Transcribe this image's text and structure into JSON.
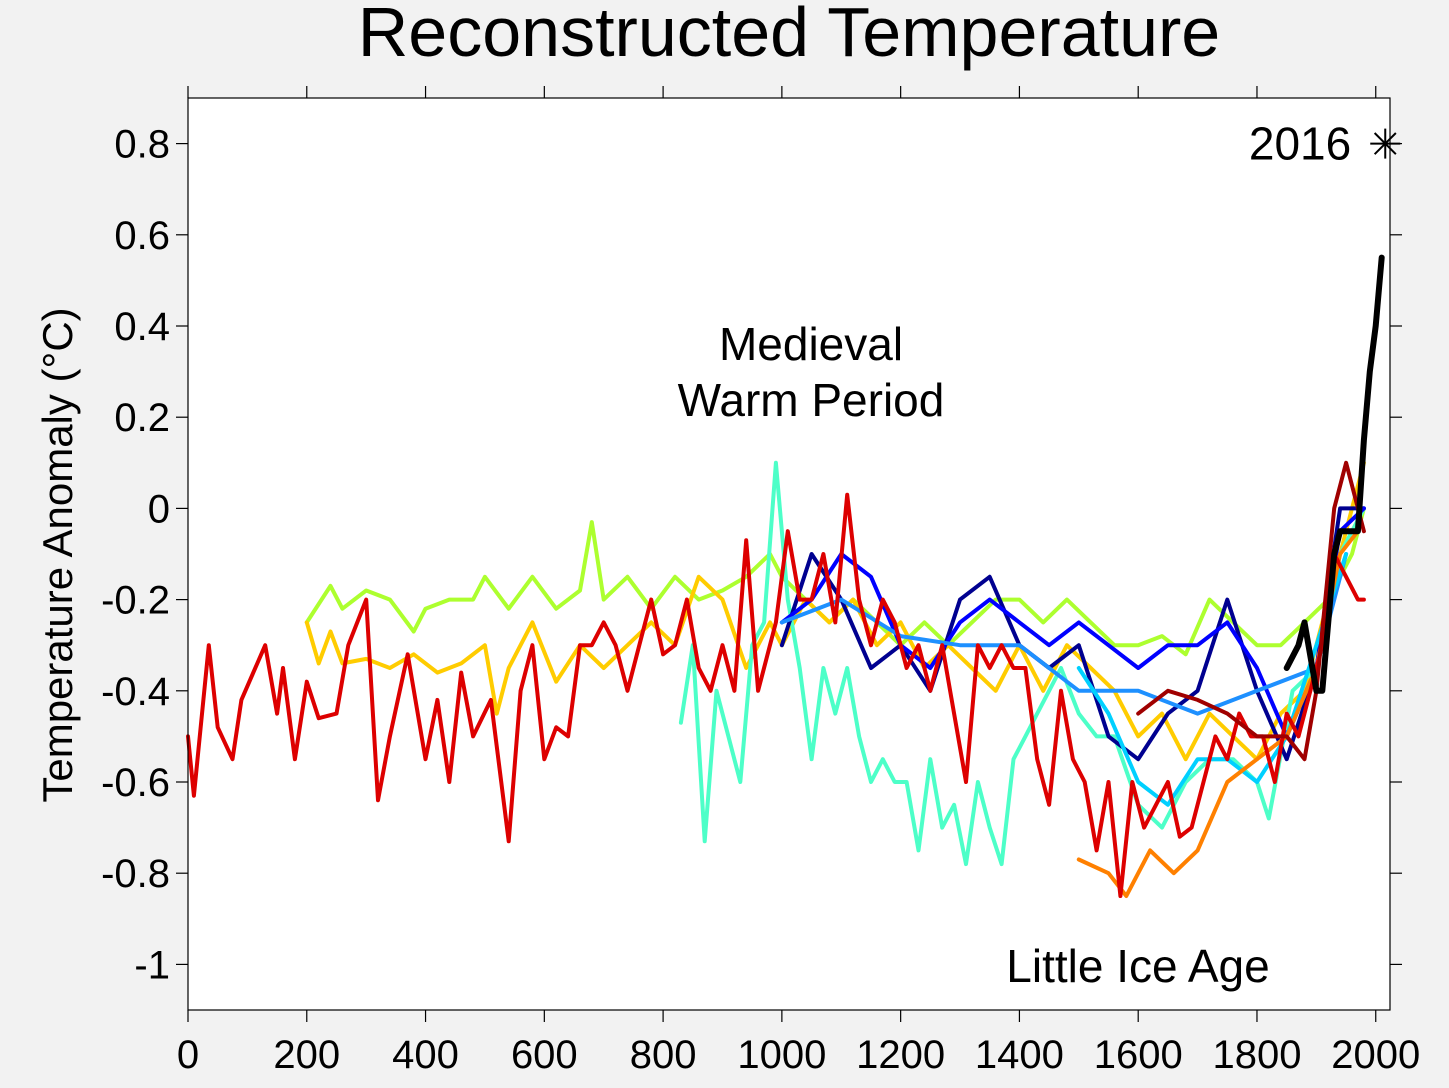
{
  "chart_data": {
    "type": "line",
    "title": "Reconstructed Temperature",
    "ylabel": "Temperature Anomaly (°C)",
    "xlim": [
      0,
      2024
    ],
    "ylim": [
      -1.1,
      0.9
    ],
    "xticks": [
      0,
      200,
      400,
      600,
      800,
      1000,
      1200,
      1400,
      1600,
      1800,
      2000
    ],
    "yticks": [
      0.8,
      0.6,
      0.4,
      0.2,
      0,
      -0.2,
      -0.4,
      -0.6,
      -0.8,
      -1
    ],
    "annotations": [
      [
        "Medieval",
        "Warm Period"
      ],
      [
        "Little Ice Age"
      ]
    ],
    "marker": {
      "x": 2016,
      "y": 0.8
    },
    "series": [
      {
        "color": "#adff2f",
        "x": [
          200,
          240,
          260,
          300,
          340,
          380,
          400,
          440,
          480,
          500,
          540,
          580,
          620,
          660,
          680,
          700,
          740,
          780,
          820,
          860,
          900,
          940,
          980,
          1000,
          1040,
          1080,
          1120,
          1160,
          1200,
          1240,
          1280,
          1320,
          1360,
          1400,
          1440,
          1480,
          1520,
          1560,
          1600,
          1640,
          1680,
          1720,
          1760,
          1800,
          1840,
          1880,
          1920,
          1960,
          1980
        ],
        "values": [
          -0.25,
          -0.17,
          -0.22,
          -0.18,
          -0.2,
          -0.27,
          -0.22,
          -0.2,
          -0.2,
          -0.15,
          -0.22,
          -0.15,
          -0.22,
          -0.18,
          -0.03,
          -0.2,
          -0.15,
          -0.22,
          -0.15,
          -0.2,
          -0.18,
          -0.15,
          -0.1,
          -0.15,
          -0.2,
          -0.25,
          -0.2,
          -0.25,
          -0.3,
          -0.25,
          -0.3,
          -0.25,
          -0.2,
          -0.2,
          -0.25,
          -0.2,
          -0.25,
          -0.3,
          -0.3,
          -0.28,
          -0.32,
          -0.2,
          -0.25,
          -0.3,
          -0.3,
          -0.25,
          -0.2,
          -0.1,
          0.0
        ]
      },
      {
        "color": "#ffcc00",
        "x": [
          200,
          220,
          240,
          260,
          300,
          340,
          380,
          420,
          460,
          500,
          520,
          540,
          580,
          620,
          660,
          700,
          740,
          780,
          820,
          860,
          900,
          940,
          980,
          1000,
          1040,
          1080,
          1120,
          1160,
          1200,
          1240,
          1280,
          1320,
          1360,
          1400,
          1440,
          1480,
          1520,
          1560,
          1600,
          1640,
          1680,
          1720,
          1760,
          1800,
          1840,
          1880,
          1920,
          1960,
          1980
        ],
        "values": [
          -0.25,
          -0.34,
          -0.27,
          -0.34,
          -0.33,
          -0.35,
          -0.32,
          -0.36,
          -0.34,
          -0.3,
          -0.45,
          -0.35,
          -0.25,
          -0.38,
          -0.3,
          -0.35,
          -0.3,
          -0.25,
          -0.3,
          -0.15,
          -0.2,
          -0.35,
          -0.25,
          -0.3,
          -0.2,
          -0.25,
          -0.2,
          -0.3,
          -0.25,
          -0.35,
          -0.3,
          -0.35,
          -0.4,
          -0.3,
          -0.4,
          -0.3,
          -0.35,
          -0.4,
          -0.5,
          -0.45,
          -0.55,
          -0.45,
          -0.5,
          -0.55,
          -0.45,
          -0.4,
          -0.2,
          0.0,
          0.1
        ]
      },
      {
        "color": "#4dffc8",
        "x": [
          830,
          850,
          870,
          890,
          910,
          930,
          950,
          970,
          990,
          1010,
          1030,
          1050,
          1070,
          1090,
          1110,
          1130,
          1150,
          1170,
          1190,
          1210,
          1230,
          1250,
          1270,
          1290,
          1310,
          1330,
          1350,
          1370,
          1390,
          1410,
          1430,
          1450,
          1470,
          1500,
          1530,
          1560,
          1600,
          1640,
          1680,
          1720,
          1760,
          1800,
          1820,
          1860,
          1900,
          1940,
          1980
        ],
        "values": [
          -0.47,
          -0.3,
          -0.73,
          -0.4,
          -0.5,
          -0.6,
          -0.3,
          -0.25,
          0.1,
          -0.2,
          -0.35,
          -0.55,
          -0.35,
          -0.45,
          -0.35,
          -0.5,
          -0.6,
          -0.55,
          -0.6,
          -0.6,
          -0.75,
          -0.55,
          -0.7,
          -0.65,
          -0.78,
          -0.6,
          -0.7,
          -0.78,
          -0.55,
          -0.5,
          -0.45,
          -0.4,
          -0.35,
          -0.45,
          -0.5,
          -0.5,
          -0.65,
          -0.7,
          -0.6,
          -0.55,
          -0.55,
          -0.6,
          -0.68,
          -0.4,
          -0.35,
          -0.1,
          0.0
        ]
      },
      {
        "color": "#000090",
        "x": [
          1000,
          1050,
          1100,
          1150,
          1200,
          1250,
          1300,
          1350,
          1400,
          1450,
          1500,
          1550,
          1600,
          1650,
          1700,
          1750,
          1800,
          1850,
          1900,
          1940,
          1980
        ],
        "values": [
          -0.3,
          -0.1,
          -0.2,
          -0.35,
          -0.3,
          -0.4,
          -0.2,
          -0.15,
          -0.3,
          -0.35,
          -0.3,
          -0.5,
          -0.55,
          -0.45,
          -0.4,
          -0.2,
          -0.4,
          -0.55,
          -0.35,
          0.0,
          0.0
        ]
      },
      {
        "color": "#0000ff",
        "x": [
          1000,
          1050,
          1100,
          1150,
          1200,
          1250,
          1300,
          1350,
          1400,
          1450,
          1500,
          1550,
          1600,
          1650,
          1700,
          1750,
          1800,
          1850,
          1900,
          1940,
          1980
        ],
        "values": [
          -0.25,
          -0.2,
          -0.1,
          -0.15,
          -0.3,
          -0.35,
          -0.25,
          -0.2,
          -0.25,
          -0.3,
          -0.25,
          -0.3,
          -0.35,
          -0.3,
          -0.3,
          -0.25,
          -0.35,
          -0.5,
          -0.35,
          -0.05,
          0.0
        ]
      },
      {
        "color": "#1e90ff",
        "x": [
          1000,
          1100,
          1200,
          1300,
          1400,
          1500,
          1600,
          1700,
          1800,
          1900,
          1950
        ],
        "values": [
          -0.25,
          -0.2,
          -0.28,
          -0.3,
          -0.3,
          -0.4,
          -0.4,
          -0.45,
          -0.4,
          -0.35,
          -0.1
        ]
      },
      {
        "color": "#00d0ff",
        "x": [
          1500,
          1550,
          1600,
          1650,
          1700,
          1750,
          1800,
          1850,
          1900,
          1950
        ],
        "values": [
          -0.35,
          -0.45,
          -0.6,
          -0.65,
          -0.55,
          -0.55,
          -0.6,
          -0.5,
          -0.3,
          -0.1
        ]
      },
      {
        "color": "#ff8000",
        "x": [
          1500,
          1550,
          1580,
          1620,
          1660,
          1700,
          1750,
          1800,
          1850,
          1900,
          1940,
          1970
        ],
        "values": [
          -0.77,
          -0.8,
          -0.85,
          -0.75,
          -0.8,
          -0.75,
          -0.6,
          -0.55,
          -0.5,
          -0.35,
          -0.1,
          -0.05
        ]
      },
      {
        "color": "#dd0000",
        "x": [
          0,
          10,
          35,
          50,
          75,
          90,
          110,
          130,
          150,
          160,
          180,
          200,
          220,
          250,
          270,
          300,
          320,
          340,
          370,
          400,
          420,
          440,
          460,
          480,
          510,
          540,
          560,
          580,
          600,
          620,
          640,
          660,
          680,
          700,
          720,
          740,
          760,
          780,
          800,
          820,
          840,
          860,
          880,
          900,
          920,
          940,
          960,
          990,
          1010,
          1030,
          1050,
          1070,
          1090,
          1110,
          1130,
          1150,
          1170,
          1190,
          1210,
          1230,
          1250,
          1270,
          1290,
          1310,
          1330,
          1350,
          1370,
          1390,
          1410,
          1430,
          1450,
          1470,
          1490,
          1510,
          1530,
          1550,
          1570,
          1590,
          1610,
          1630,
          1650,
          1670,
          1690,
          1710,
          1730,
          1750,
          1770,
          1790,
          1810,
          1830,
          1850,
          1870,
          1890,
          1910,
          1930,
          1950,
          1970,
          1980
        ],
        "values": [
          -0.5,
          -0.63,
          -0.3,
          -0.48,
          -0.55,
          -0.42,
          -0.36,
          -0.3,
          -0.45,
          -0.35,
          -0.55,
          -0.38,
          -0.46,
          -0.45,
          -0.3,
          -0.2,
          -0.64,
          -0.5,
          -0.32,
          -0.55,
          -0.42,
          -0.6,
          -0.36,
          -0.5,
          -0.42,
          -0.73,
          -0.4,
          -0.3,
          -0.55,
          -0.48,
          -0.5,
          -0.3,
          -0.3,
          -0.25,
          -0.3,
          -0.4,
          -0.3,
          -0.2,
          -0.32,
          -0.3,
          -0.2,
          -0.35,
          -0.4,
          -0.3,
          -0.4,
          -0.07,
          -0.4,
          -0.25,
          -0.05,
          -0.2,
          -0.2,
          -0.1,
          -0.25,
          0.03,
          -0.2,
          -0.3,
          -0.2,
          -0.25,
          -0.35,
          -0.3,
          -0.4,
          -0.3,
          -0.45,
          -0.6,
          -0.3,
          -0.35,
          -0.3,
          -0.35,
          -0.35,
          -0.55,
          -0.65,
          -0.4,
          -0.55,
          -0.6,
          -0.75,
          -0.6,
          -0.85,
          -0.6,
          -0.7,
          -0.65,
          -0.6,
          -0.72,
          -0.7,
          -0.6,
          -0.5,
          -0.55,
          -0.45,
          -0.5,
          -0.5,
          -0.6,
          -0.45,
          -0.5,
          -0.4,
          -0.3,
          -0.1,
          -0.15,
          -0.2,
          -0.2
        ]
      },
      {
        "color": "#a00000",
        "x": [
          1600,
          1650,
          1700,
          1750,
          1800,
          1850,
          1880,
          1900,
          1930,
          1950,
          1980
        ],
        "values": [
          -0.45,
          -0.4,
          -0.42,
          -0.45,
          -0.5,
          -0.5,
          -0.55,
          -0.4,
          0.0,
          0.1,
          -0.05
        ]
      },
      {
        "color": "#000000",
        "x": [
          1850,
          1870,
          1880,
          1900,
          1910,
          1930,
          1940,
          1960,
          1970,
          1980,
          1990,
          2000,
          2010
        ],
        "values": [
          -0.35,
          -0.3,
          -0.25,
          -0.4,
          -0.4,
          -0.1,
          -0.05,
          -0.05,
          -0.05,
          0.15,
          0.3,
          0.4,
          0.55
        ]
      }
    ]
  }
}
